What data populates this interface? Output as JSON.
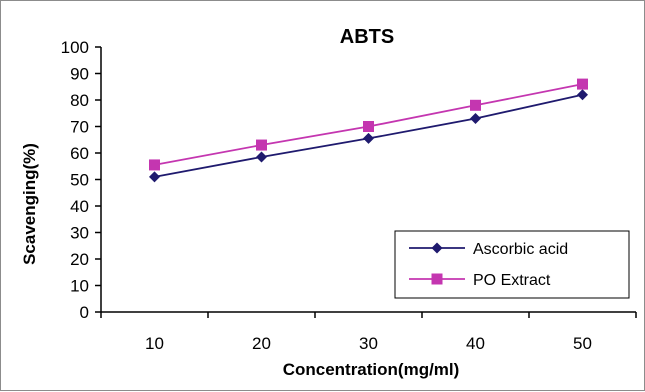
{
  "chart_data": {
    "type": "line",
    "title": "ABTS",
    "xlabel": "Concentration(mg/ml)",
    "ylabel": "Scavenging(%)",
    "categories": [
      "10",
      "20",
      "30",
      "40",
      "50"
    ],
    "ylim": [
      0,
      100
    ],
    "yticks": [
      "0",
      "10",
      "20",
      "30",
      "40",
      "50",
      "60",
      "70",
      "80",
      "90",
      "100"
    ],
    "grid": false,
    "legend_position": "bottom-right",
    "series": [
      {
        "name": "Ascorbic acid",
        "values": [
          51,
          58.5,
          65.5,
          73,
          82
        ],
        "color": "#1f1a6e",
        "marker": "diamond"
      },
      {
        "name": "PO Extract",
        "values": [
          55.5,
          63,
          70,
          78,
          86
        ],
        "color": "#c436b0",
        "marker": "square"
      }
    ]
  }
}
